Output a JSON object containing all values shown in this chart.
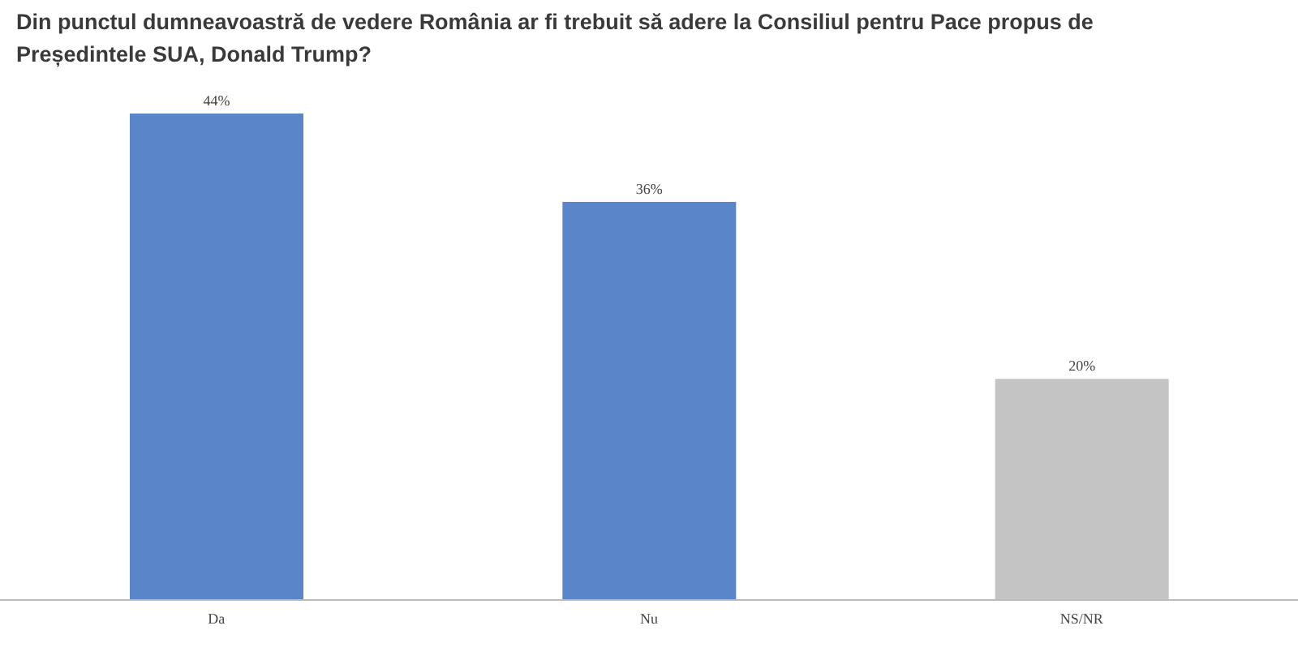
{
  "chart_data": {
    "type": "bar",
    "title": "Din punctul dumneavoastră de vedere România ar fi trebuit să adere la Consiliul pentru Pace propus de Președintele SUA, Donald Trump?",
    "categories": [
      "Da",
      "Nu",
      "NS/NR"
    ],
    "values": [
      44,
      36,
      20
    ],
    "colors": [
      "#5b85c9",
      "#5b85c9",
      "#c4c4c4"
    ],
    "value_labels": [
      "44%",
      "36%",
      "20%"
    ],
    "grid": false,
    "legend": false
  }
}
